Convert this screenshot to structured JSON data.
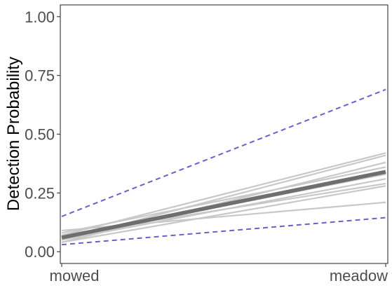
{
  "chart_data": {
    "type": "line",
    "xlabel": "",
    "ylabel": "Detection Probability",
    "categories": [
      "mowed",
      "meadow"
    ],
    "ylim": [
      -0.05,
      1.05
    ],
    "yticks": [
      "0.00",
      "0.25",
      "0.50",
      "0.75",
      "1.00"
    ],
    "grid": false,
    "series": [
      {
        "style": "mean",
        "values": [
          0.06,
          0.34
        ]
      },
      {
        "style": "ci",
        "values": [
          0.15,
          0.69
        ]
      },
      {
        "style": "ci",
        "values": [
          0.03,
          0.145
        ]
      },
      {
        "style": "draw",
        "values": [
          0.07,
          0.42
        ]
      },
      {
        "style": "draw",
        "values": [
          0.05,
          0.41
        ]
      },
      {
        "style": "draw",
        "values": [
          0.04,
          0.38
        ]
      },
      {
        "style": "draw",
        "values": [
          0.08,
          0.36
        ]
      },
      {
        "style": "draw",
        "values": [
          0.06,
          0.33
        ]
      },
      {
        "style": "draw",
        "values": [
          0.05,
          0.31
        ]
      },
      {
        "style": "draw",
        "values": [
          0.07,
          0.29
        ]
      },
      {
        "style": "draw",
        "values": [
          0.04,
          0.28
        ]
      },
      {
        "style": "draw",
        "values": [
          0.09,
          0.21
        ]
      }
    ],
    "colors": {
      "mean": "#6e6e6e",
      "ci": "#6a5fd0",
      "draw": "#c8c8c8",
      "axis": "#333333",
      "tick_text": "#4d4d4d"
    }
  }
}
